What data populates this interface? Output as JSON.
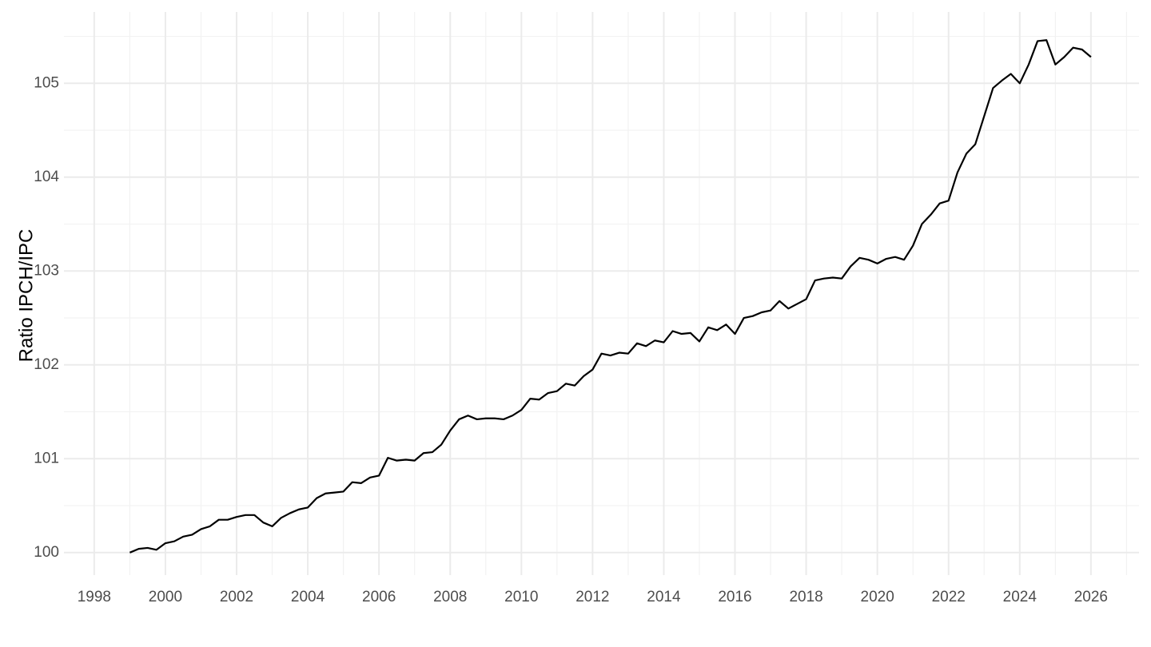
{
  "chart_data": {
    "type": "line",
    "y_label": "Ratio IPCH/IPC",
    "x": [
      1999,
      1999.25,
      1999.5,
      1999.75,
      2000,
      2000.25,
      2000.5,
      2000.75,
      2001,
      2001.25,
      2001.5,
      2001.75,
      2002,
      2002.25,
      2002.5,
      2002.75,
      2003,
      2003.25,
      2003.5,
      2003.75,
      2004,
      2004.25,
      2004.5,
      2004.75,
      2005,
      2005.25,
      2005.5,
      2005.75,
      2006,
      2006.25,
      2006.5,
      2006.75,
      2007,
      2007.25,
      2007.5,
      2007.75,
      2008,
      2008.25,
      2008.5,
      2008.75,
      2009,
      2009.25,
      2009.5,
      2009.75,
      2010,
      2010.25,
      2010.5,
      2010.75,
      2011,
      2011.25,
      2011.5,
      2011.75,
      2012,
      2012.25,
      2012.5,
      2012.75,
      2013,
      2013.25,
      2013.5,
      2013.75,
      2014,
      2014.25,
      2014.5,
      2014.75,
      2015,
      2015.25,
      2015.5,
      2015.75,
      2016,
      2016.25,
      2016.5,
      2016.75,
      2017,
      2017.25,
      2017.5,
      2017.75,
      2018,
      2018.25,
      2018.5,
      2018.75,
      2019,
      2019.25,
      2019.5,
      2019.75,
      2020,
      2020.25,
      2020.5,
      2020.75,
      2021,
      2021.25,
      2021.5,
      2021.75,
      2022,
      2022.25,
      2022.5,
      2022.75,
      2023,
      2023.25,
      2023.5,
      2023.75,
      2024,
      2024.25,
      2024.5,
      2024.75,
      2025,
      2025.25,
      2025.5,
      2025.75,
      2026
    ],
    "series": [
      {
        "color": "#000000",
        "values": [
          100.0,
          100.04,
          100.05,
          100.03,
          100.1,
          100.12,
          100.17,
          100.19,
          100.25,
          100.28,
          100.35,
          100.35,
          100.38,
          100.4,
          100.4,
          100.32,
          100.28,
          100.37,
          100.42,
          100.46,
          100.48,
          100.58,
          100.63,
          100.64,
          100.65,
          100.75,
          100.74,
          100.8,
          100.82,
          101.01,
          100.98,
          100.99,
          100.98,
          101.06,
          101.07,
          101.15,
          101.3,
          101.42,
          101.46,
          101.42,
          101.43,
          101.43,
          101.42,
          101.46,
          101.52,
          101.64,
          101.63,
          101.7,
          101.72,
          101.8,
          101.78,
          101.88,
          101.95,
          102.12,
          102.1,
          102.13,
          102.12,
          102.23,
          102.2,
          102.26,
          102.24,
          102.36,
          102.33,
          102.34,
          102.25,
          102.4,
          102.37,
          102.43,
          102.33,
          102.5,
          102.52,
          102.56,
          102.58,
          102.68,
          102.6,
          102.65,
          102.7,
          102.9,
          102.92,
          102.93,
          102.92,
          103.05,
          103.14,
          103.12,
          103.08,
          103.13,
          103.15,
          103.12,
          103.27,
          103.5,
          103.6,
          103.72,
          103.75,
          104.05,
          104.25,
          104.35,
          104.65,
          104.95,
          105.03,
          105.1,
          105.0,
          105.2,
          105.45,
          105.46,
          105.2,
          105.28,
          105.38,
          105.36,
          105.28
        ]
      }
    ],
    "xlim": [
      1997.15,
      2027.35
    ],
    "ylim": [
      99.76,
      105.76
    ],
    "xticks": [
      1998,
      2000,
      2002,
      2004,
      2006,
      2008,
      2010,
      2012,
      2014,
      2016,
      2018,
      2020,
      2022,
      2024,
      2026
    ],
    "yticks": [
      100,
      101,
      102,
      103,
      104,
      105
    ],
    "grid": true
  }
}
